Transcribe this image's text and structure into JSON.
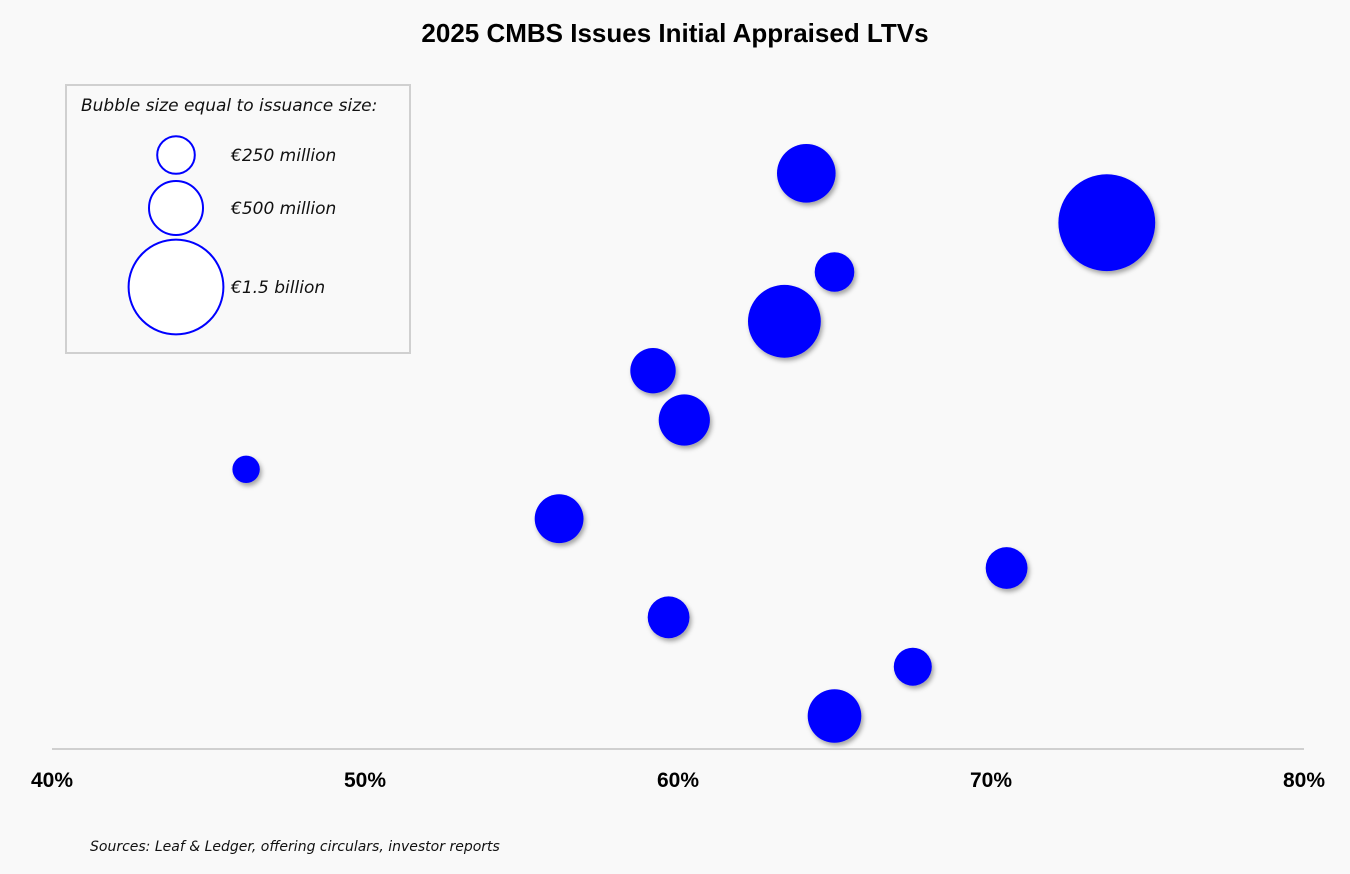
{
  "chart_data": {
    "type": "scatter",
    "title": "2025 CMBS Issues Initial Appraised LTVs",
    "xlabel": "",
    "ylabel": "",
    "xlim": [
      0.4,
      0.8
    ],
    "xticks": [
      0.4,
      0.5,
      0.6,
      0.7,
      0.8
    ],
    "xtick_labels": [
      "40%",
      "50%",
      "60%",
      "70%",
      "80%"
    ],
    "grid": false,
    "colors": {
      "bubble": "#0000ff",
      "axis": "#d0d0d0",
      "legend_border": "#d0d0d0",
      "background": "#f9f9f9"
    },
    "size_unit": "EUR million",
    "points": [
      {
        "rank": 1,
        "ltv": 0.641,
        "size": 550
      },
      {
        "rank": 2,
        "ltv": 0.737,
        "size": 1500
      },
      {
        "rank": 3,
        "ltv": 0.65,
        "size": 250
      },
      {
        "rank": 4,
        "ltv": 0.634,
        "size": 850
      },
      {
        "rank": 5,
        "ltv": 0.592,
        "size": 330
      },
      {
        "rank": 6,
        "ltv": 0.602,
        "size": 420
      },
      {
        "rank": 7,
        "ltv": 0.462,
        "size": 120
      },
      {
        "rank": 8,
        "ltv": 0.562,
        "size": 380
      },
      {
        "rank": 9,
        "ltv": 0.705,
        "size": 280
      },
      {
        "rank": 10,
        "ltv": 0.597,
        "size": 280
      },
      {
        "rank": 11,
        "ltv": 0.675,
        "size": 230
      },
      {
        "rank": 12,
        "ltv": 0.65,
        "size": 460
      }
    ],
    "legend": {
      "title": "Bubble size equal to issuance size:",
      "placement": "top-left",
      "items": [
        {
          "label": "€250 million",
          "size": 250
        },
        {
          "label": "€500 million",
          "size": 500
        },
        {
          "label": "€1.5 billion",
          "size": 1500
        }
      ]
    },
    "source": "Sources: Leaf & Ledger, offering circulars, investor reports"
  }
}
